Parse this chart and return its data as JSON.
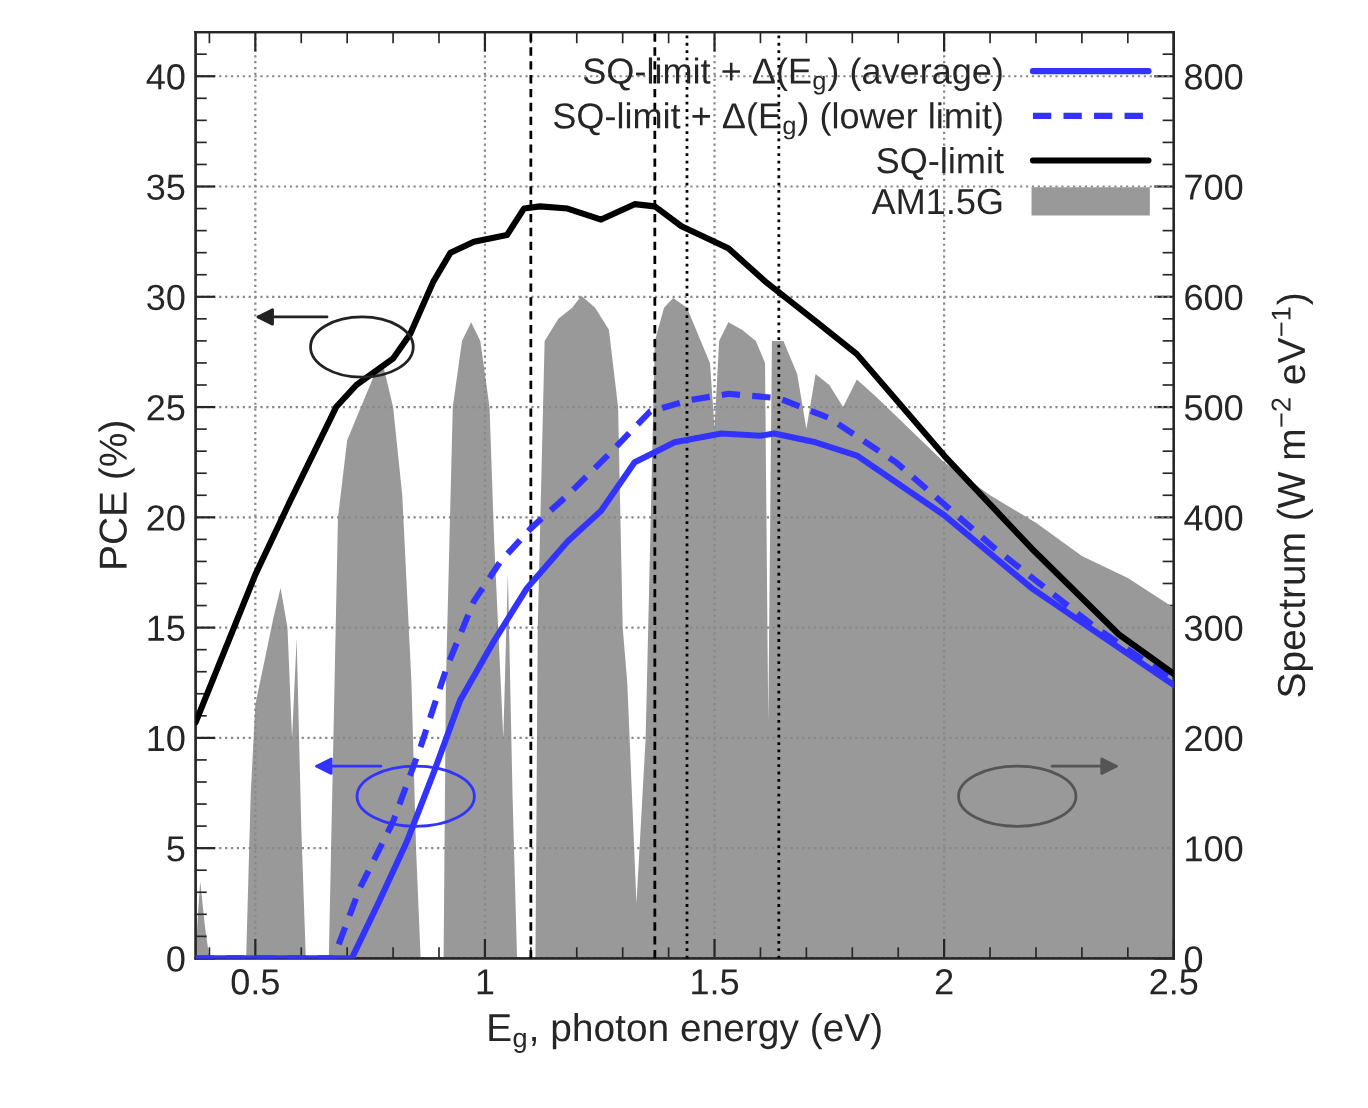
{
  "chart_data": {
    "type": "line",
    "xlabel": "E$_{g}$, photon energy (eV)",
    "ylabel": "PCE (%)",
    "y2label": "Spectrum (W m$^{−2}$ eV$^{−1}$)",
    "xlim": [
      0.37,
      2.5
    ],
    "xticks": [
      {
        "value": 0.5,
        "label": "0.5"
      },
      {
        "value": 1,
        "label": "1"
      },
      {
        "value": 1.5,
        "label": "1.5"
      },
      {
        "value": 2,
        "label": "2"
      },
      {
        "value": 2.5,
        "label": "2.5"
      }
    ],
    "ylim": [
      0,
      42
    ],
    "yticks": [
      0,
      5,
      10,
      15,
      20,
      25,
      30,
      35,
      40
    ],
    "y2lim": [
      0,
      840
    ],
    "y2ticks": [
      0,
      100,
      200,
      300,
      400,
      500,
      600,
      700,
      800
    ],
    "grid": true,
    "legend": "top right",
    "marker": "none",
    "series": [
      {
        "name": "SQ-limit + Δ(E$_{g}$) (average)",
        "color": "#3333ff",
        "line_style": "solid",
        "x": [
          0.37,
          0.71,
          0.77,
          0.83,
          0.888,
          0.946,
          1.02,
          1.092,
          1.18,
          1.253,
          1.326,
          1.384,
          1.413,
          1.515,
          1.6,
          1.63,
          1.72,
          1.81,
          2.0,
          2.19,
          2.38,
          2.5
        ],
        "values": [
          0,
          0,
          2.6,
          5.3,
          8.4,
          11.7,
          14.4,
          16.8,
          18.9,
          20.3,
          22.5,
          23.1,
          23.4,
          23.8,
          23.7,
          23.8,
          23.4,
          22.8,
          20.1,
          16.8,
          14.1,
          12.4
        ]
      },
      {
        "name": "SQ-limit + Δ(E$_{g}$) (lower limit)",
        "color": "#3333ff",
        "line_style": "dashed",
        "x": [
          0.37,
          0.67,
          0.728,
          0.8,
          0.86,
          0.917,
          0.976,
          1.034,
          1.1,
          1.18,
          1.267,
          1.36,
          1.442,
          1.53,
          1.64,
          1.75,
          1.895,
          2.11,
          2.33,
          2.5
        ],
        "values": [
          0,
          0,
          3.2,
          6.2,
          9.6,
          13.2,
          16.2,
          18.0,
          19.5,
          21.0,
          22.8,
          24.8,
          25.3,
          25.6,
          25.4,
          24.5,
          22.5,
          18.6,
          15.0,
          12.6
        ]
      },
      {
        "name": "SQ-limit",
        "color": "#000000",
        "line_style": "solid",
        "x": [
          0.37,
          0.5,
          0.575,
          0.676,
          0.72,
          0.8,
          0.837,
          0.888,
          0.925,
          0.976,
          1.048,
          1.085,
          1.12,
          1.18,
          1.253,
          1.326,
          1.37,
          1.428,
          1.53,
          1.61,
          1.72,
          1.81,
          2.0,
          2.19,
          2.38,
          2.5
        ],
        "values": [
          10.7,
          17.4,
          20.7,
          25.0,
          26.0,
          27.2,
          28.3,
          30.7,
          32.0,
          32.5,
          32.8,
          34.0,
          34.1,
          34.0,
          33.5,
          34.2,
          34.1,
          33.2,
          32.2,
          30.7,
          28.9,
          27.4,
          22.8,
          18.6,
          14.7,
          12.9
        ]
      },
      {
        "name": "AM1.5G",
        "color": "#999999",
        "type": "area",
        "axis": "y2",
        "x": [
          0.37,
          0.375,
          0.38,
          0.39,
          0.4,
          0.48,
          0.49,
          0.5,
          0.52,
          0.54,
          0.555,
          0.57,
          0.58,
          0.59,
          0.6,
          0.61,
          0.66,
          0.67,
          0.68,
          0.7,
          0.73,
          0.76,
          0.78,
          0.8,
          0.82,
          0.84,
          0.85,
          0.86,
          0.91,
          0.915,
          0.93,
          0.95,
          0.97,
          0.99,
          1.01,
          1.02,
          1.04,
          1.05,
          1.06,
          1.07,
          1.11,
          1.115,
          1.13,
          1.16,
          1.19,
          1.21,
          1.24,
          1.27,
          1.29,
          1.3,
          1.31,
          1.33,
          1.35,
          1.37,
          1.39,
          1.41,
          1.44,
          1.47,
          1.49,
          1.5,
          1.51,
          1.53,
          1.56,
          1.59,
          1.61,
          1.617,
          1.625,
          1.65,
          1.68,
          1.7,
          1.72,
          1.75,
          1.78,
          1.81,
          1.85,
          1.9,
          1.95,
          2.0,
          2.1,
          2.2,
          2.3,
          2.4,
          2.5
        ],
        "values": [
          0,
          40,
          70,
          30,
          0,
          0,
          150,
          230,
          270,
          310,
          336,
          300,
          200,
          290,
          120,
          0,
          0,
          200,
          400,
          470,
          500,
          530,
          535,
          500,
          420,
          250,
          100,
          0,
          0,
          250,
          500,
          560,
          577,
          560,
          500,
          380,
          200,
          350,
          150,
          0,
          0,
          300,
          560,
          580,
          590,
          601,
          590,
          570,
          500,
          300,
          250,
          50,
          200,
          560,
          590,
          599,
          590,
          560,
          540,
          481,
          560,
          577,
          570,
          560,
          540,
          215,
          560,
          560,
          530,
          480,
          530,
          520,
          500,
          525,
          510,
          490,
          470,
          450,
          420,
          395,
          365,
          345,
          318
        ]
      }
    ],
    "ref_lines": [
      {
        "axis": "x",
        "value": 1.1,
        "line_style": "dashed",
        "color": "#000000"
      },
      {
        "axis": "x",
        "value": 1.37,
        "line_style": "dashed",
        "color": "#000000"
      },
      {
        "axis": "x",
        "value": 1.44,
        "line_style": "dotted",
        "color": "#000000"
      },
      {
        "axis": "x",
        "value": 1.64,
        "line_style": "dotted",
        "color": "#000000"
      }
    ]
  }
}
